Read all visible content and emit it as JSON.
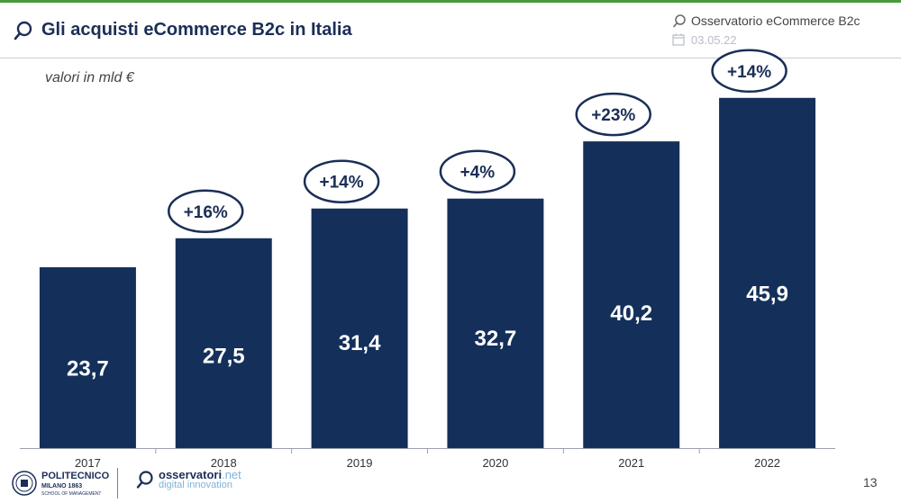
{
  "header": {
    "title": "Gli acquisti eCommerce B2c in Italia",
    "brand": "Osservatorio eCommerce B2c",
    "date": "03.05.22"
  },
  "unit_label": "valori in mld €",
  "chart_data": {
    "type": "bar",
    "categories": [
      "2017",
      "2018",
      "2019",
      "2020",
      "2021",
      "2022"
    ],
    "values": [
      23.7,
      27.5,
      31.4,
      32.7,
      40.2,
      45.9
    ],
    "value_labels": [
      "23,7",
      "27,5",
      "31,4",
      "32,7",
      "40,2",
      "45,9"
    ],
    "growth_labels": [
      "",
      "+16%",
      "+14%",
      "+4%",
      "+23%",
      "+14%"
    ],
    "bar_color": "#14305a",
    "ylim": [
      0,
      50
    ],
    "grid": false,
    "legend": "none"
  },
  "footer": {
    "politecnico": "POLITECNICO",
    "politecnico_sub": "MILANO 1863",
    "politecnico_school": "SCHOOL OF MANAGEMENT",
    "oss_name": "osservatori",
    "oss_tld": ".net",
    "oss_tagline": "digital innovation",
    "page_number": "13"
  },
  "icons": {
    "title": "magnifier-icon",
    "brand": "magnifier-icon",
    "date": "calendar-icon",
    "politecnico": "university-seal-icon",
    "osservatori": "magnifier-icon"
  },
  "colors": {
    "accent": "#1b2e57",
    "top_line": "#4a9a3c",
    "light_accent": "#7fb3d5"
  }
}
